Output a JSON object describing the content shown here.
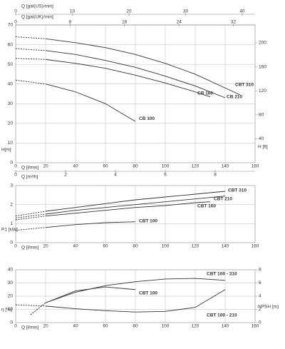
{
  "chart_data": [
    {
      "type": "line",
      "color": "#333333",
      "grid": true,
      "x_label": "Q [l/min]",
      "xlim": [
        0,
        160
      ],
      "xticks": [
        0,
        20,
        40,
        60,
        80,
        100,
        120,
        140,
        160
      ],
      "y_label": "H[m]",
      "ylim": [
        0,
        70
      ],
      "yticks": [
        0,
        10,
        20,
        30,
        40,
        50,
        60,
        70
      ],
      "y2_label": "H [ft]",
      "y2lim": [
        0,
        229.7
      ],
      "y2ticks": [
        40,
        80,
        120,
        160,
        200
      ],
      "extra_x_axes": [
        {
          "side": "top",
          "label": "Q [gal(US)/min]",
          "lim": [
            0,
            42.27
          ],
          "ticks": [
            0,
            10,
            20,
            30,
            40
          ]
        },
        {
          "side": "top",
          "label": "Q [gal(UK)/min]",
          "lim": [
            0,
            35.2
          ],
          "ticks": [
            0,
            8,
            16,
            24,
            32
          ]
        },
        {
          "side": "bottom",
          "label": "Q [m³/h]",
          "lim": [
            0,
            9.6
          ],
          "ticks": [
            0,
            2,
            4,
            6,
            8
          ]
        }
      ],
      "series": [
        {
          "name": "CBT 310",
          "x": [
            0,
            20,
            40,
            60,
            80,
            100,
            120,
            140,
            150
          ],
          "values": [
            64,
            63,
            61,
            58.5,
            55,
            50.5,
            45,
            38,
            34.5
          ]
        },
        {
          "name": "CB 210",
          "x": [
            0,
            20,
            40,
            60,
            80,
            100,
            120,
            140
          ],
          "values": [
            58,
            57,
            55,
            52,
            48.5,
            44,
            39,
            33
          ]
        },
        {
          "name": "CB 160",
          "x": [
            0,
            20,
            40,
            60,
            80,
            100,
            120,
            130
          ],
          "values": [
            53,
            52.5,
            50.5,
            48,
            44.5,
            40.5,
            36,
            33.5
          ]
        },
        {
          "name": "CB 100",
          "x": [
            0,
            20,
            40,
            60,
            80
          ],
          "values": [
            42,
            40,
            36,
            30,
            21
          ]
        }
      ]
    },
    {
      "type": "line",
      "color": "#333333",
      "grid": true,
      "x_label": "Q [l/min]",
      "xlim": [
        0,
        160
      ],
      "xticks": [
        0,
        20,
        40,
        60,
        80,
        100,
        120,
        140,
        160
      ],
      "y_label": "P1 [kW]",
      "ylim": [
        0,
        3
      ],
      "yticks": [
        0,
        1,
        2,
        3
      ],
      "series": [
        {
          "name": "CBT 310",
          "x": [
            0,
            20,
            40,
            60,
            80,
            100,
            120,
            140
          ],
          "values": [
            1.4,
            1.65,
            1.85,
            2.05,
            2.25,
            2.4,
            2.55,
            2.7
          ]
        },
        {
          "name": "CBT 210",
          "x": [
            0,
            20,
            40,
            60,
            80,
            100,
            120,
            140
          ],
          "values": [
            1.3,
            1.5,
            1.7,
            1.85,
            2.0,
            2.15,
            2.3,
            2.45
          ]
        },
        {
          "name": "CBT 160",
          "x": [
            0,
            20,
            40,
            60,
            80,
            100,
            120,
            130
          ],
          "values": [
            1.2,
            1.4,
            1.55,
            1.7,
            1.85,
            1.95,
            2.1,
            2.15
          ]
        },
        {
          "name": "CBT 100",
          "x": [
            0,
            20,
            40,
            60,
            80
          ],
          "values": [
            0.65,
            0.8,
            0.95,
            1.05,
            1.1
          ]
        }
      ]
    },
    {
      "type": "line",
      "color": "#333333",
      "grid": true,
      "x_label": "Q [l/min]",
      "xlim": [
        0,
        160
      ],
      "xticks": [
        0,
        20,
        40,
        60,
        80,
        100,
        120,
        140,
        160
      ],
      "y_label": "η [%]",
      "ylim": [
        0,
        40
      ],
      "yticks": [
        0,
        10,
        20,
        30,
        40
      ],
      "y2_label": "NPSH [m]",
      "y2lim": [
        0,
        8
      ],
      "y2ticks": [
        0,
        2,
        4,
        6,
        8
      ],
      "series": [
        {
          "name": "CBT 100 - 310",
          "x": [
            10,
            20,
            40,
            60,
            80,
            100,
            120,
            140
          ],
          "values": [
            6,
            15,
            23,
            28,
            31,
            33,
            33.5,
            32
          ]
        },
        {
          "name": "CBT 100",
          "x": [
            10,
            20,
            40,
            60,
            80
          ],
          "values": [
            6,
            15,
            24,
            27,
            25
          ]
        },
        {
          "name": "CBT 100 - 210",
          "axis": "y2",
          "x": [
            0,
            20,
            40,
            60,
            80,
            100,
            120,
            140
          ],
          "values": [
            2.7,
            2.5,
            2.1,
            1.8,
            1.6,
            1.7,
            2.3,
            5.0
          ]
        }
      ]
    }
  ]
}
